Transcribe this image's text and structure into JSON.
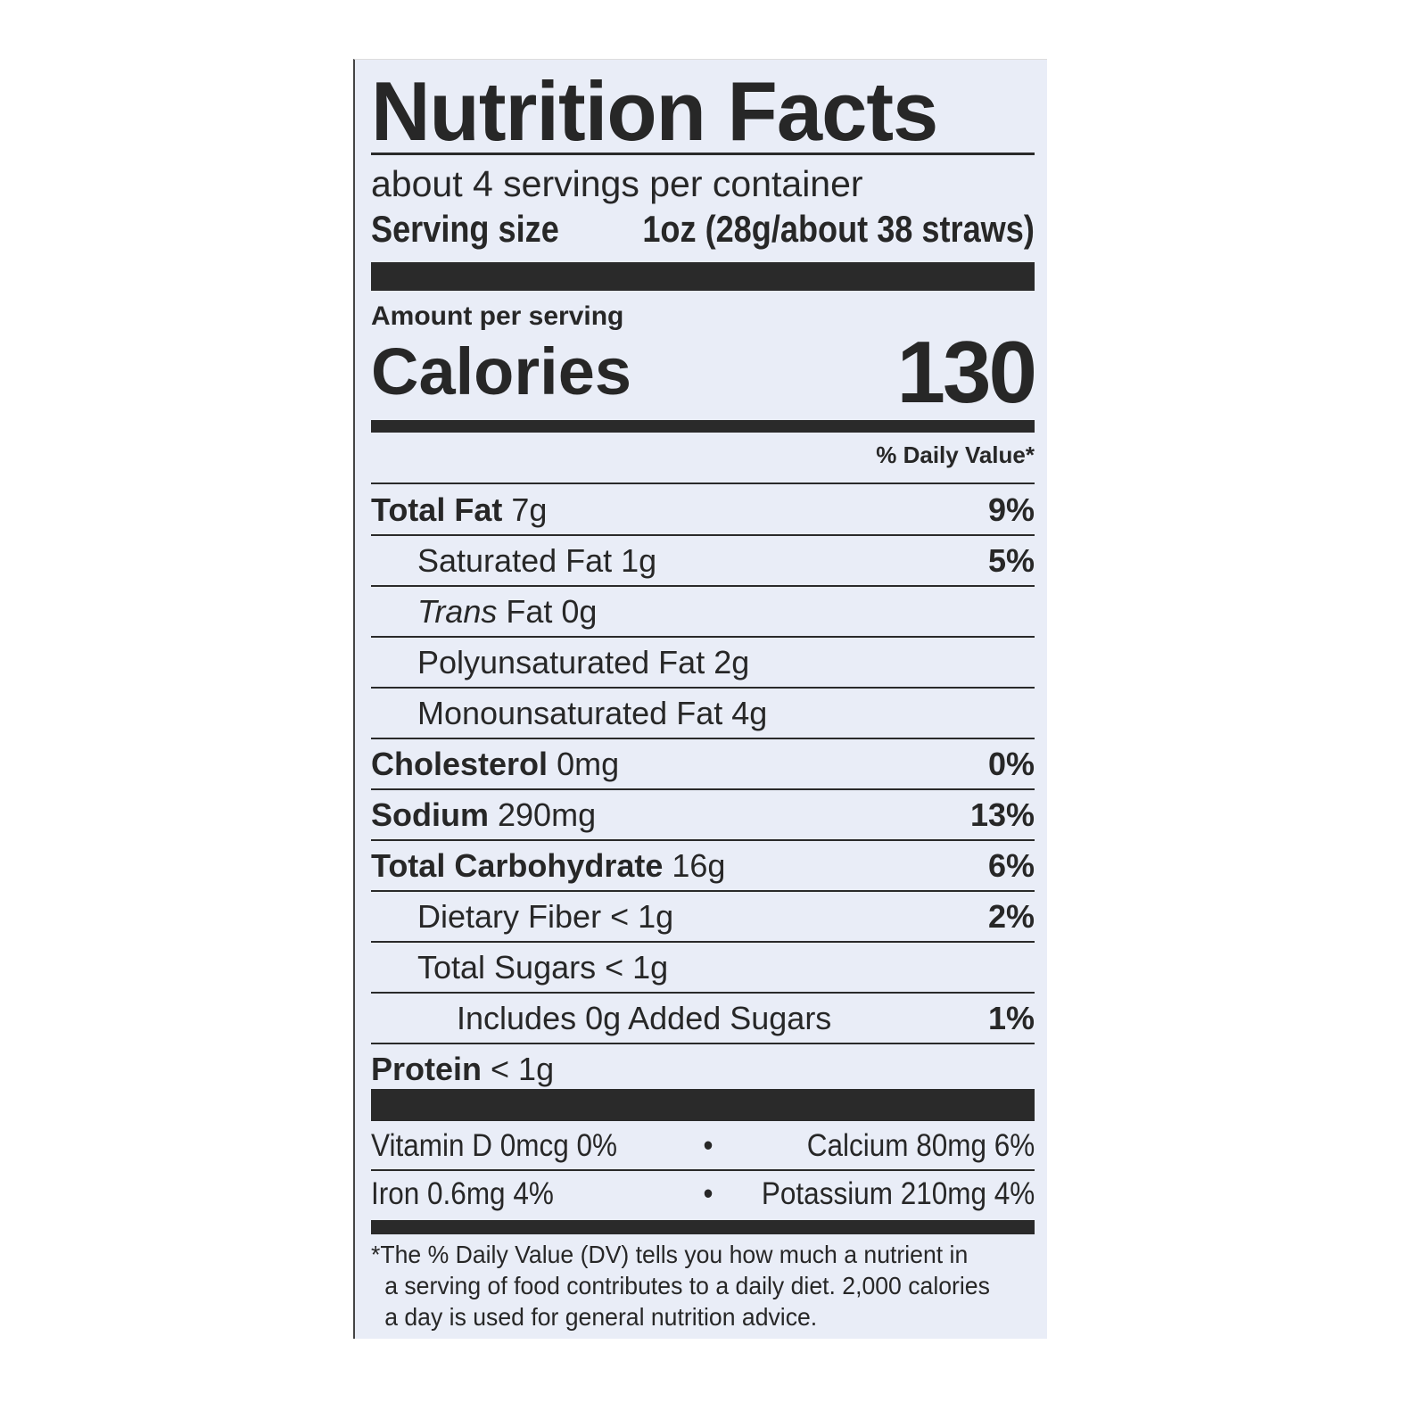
{
  "label": {
    "title": "Nutrition Facts",
    "servings_per_container": "about 4 servings per container",
    "serving_size_label": "Serving size",
    "serving_size_value": "1oz (28g/about 38 straws)",
    "amount_per_serving": "Amount per serving",
    "calories_label": "Calories",
    "calories_value": "130",
    "daily_value_header": "% Daily Value*",
    "nutrients": [
      {
        "name": "Total Fat",
        "amount": "7g",
        "dv": "9%"
      },
      {
        "name": "Saturated Fat",
        "amount": "1g",
        "dv": "5%"
      },
      {
        "name": "Trans",
        "name_suffix": "Fat",
        "amount": "0g",
        "dv": ""
      },
      {
        "name": "Polyunsaturated Fat",
        "amount": "2g",
        "dv": ""
      },
      {
        "name": "Monounsaturated Fat",
        "amount": "4g",
        "dv": ""
      },
      {
        "name": "Cholesterol",
        "amount": "0mg",
        "dv": "0%"
      },
      {
        "name": "Sodium",
        "amount": "290mg",
        "dv": "13%"
      },
      {
        "name": "Total Carbohydrate",
        "amount": "16g",
        "dv": "6%"
      },
      {
        "name": "Dietary Fiber",
        "amount": "< 1g",
        "dv": "2%"
      },
      {
        "name": "Total Sugars",
        "amount": "< 1g",
        "dv": ""
      },
      {
        "name": "Includes 0g Added Sugars",
        "amount": "",
        "dv": "1%"
      },
      {
        "name": "Protein",
        "amount": "< 1g",
        "dv": ""
      }
    ],
    "vitamins": [
      {
        "left": "Vitamin D 0mcg 0%",
        "bullet": "•",
        "right": "Calcium 80mg 6%"
      },
      {
        "left": "Iron 0.6mg 4%",
        "bullet": "•",
        "right": "Potassium 210mg 4%"
      }
    ],
    "footnote": [
      "*The % Daily Value (DV) tells you how much a nutrient in",
      "a serving of food contributes to a daily diet. 2,000 calories",
      "a day is used for general nutrition advice."
    ]
  },
  "colors": {
    "label_background": "#e9edf7",
    "ink": "#272727"
  }
}
